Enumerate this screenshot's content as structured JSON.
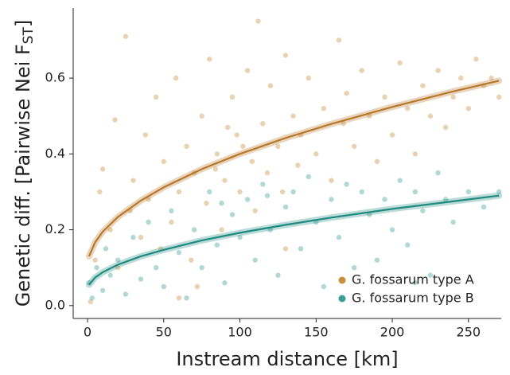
{
  "chart_data": {
    "type": "scatter",
    "x_label": "Instream distance [km]",
    "y_label": {
      "text": "Genetic diff. [Pairwise Nei F",
      "subscript": "ST",
      "suffix": "]"
    },
    "xlim": [
      -9.4,
      271.5
    ],
    "ylim": [
      -0.034,
      0.785
    ],
    "xticks": [
      0,
      50,
      100,
      150,
      200,
      250
    ],
    "yticks": [
      {
        "value": 0,
        "label": "0.0"
      },
      0.2,
      0.4,
      0.6
    ],
    "legend": "bottom-right",
    "series": [
      {
        "name": "G. fossarum type A",
        "color": "#c98f3c",
        "x": [
          2,
          5,
          8,
          10,
          15,
          18,
          20,
          25,
          28,
          30,
          35,
          38,
          40,
          45,
          48,
          50,
          55,
          58,
          60,
          65,
          68,
          70,
          75,
          78,
          80,
          85,
          88,
          90,
          95,
          98,
          100,
          105,
          108,
          110,
          112,
          115,
          118,
          120,
          125,
          128,
          130,
          135,
          138,
          140,
          145,
          150,
          155,
          160,
          165,
          168,
          170,
          175,
          180,
          185,
          190,
          195,
          200,
          205,
          210,
          215,
          220,
          225,
          230,
          235,
          240,
          245,
          250,
          255,
          260,
          265,
          270,
          72,
          60,
          130,
          92,
          102,
          84
        ],
        "values": [
          0.01,
          0.12,
          0.3,
          0.36,
          0.2,
          0.49,
          0.1,
          0.71,
          0.25,
          0.33,
          0.18,
          0.45,
          0.28,
          0.55,
          0.15,
          0.38,
          0.22,
          0.6,
          0.3,
          0.42,
          0.12,
          0.35,
          0.5,
          0.27,
          0.65,
          0.4,
          0.2,
          0.33,
          0.55,
          0.45,
          0.3,
          0.62,
          0.38,
          0.25,
          0.75,
          0.48,
          0.35,
          0.58,
          0.42,
          0.3,
          0.66,
          0.5,
          0.37,
          0.45,
          0.6,
          0.4,
          0.52,
          0.33,
          0.7,
          0.48,
          0.56,
          0.42,
          0.62,
          0.5,
          0.38,
          0.55,
          0.45,
          0.64,
          0.52,
          0.4,
          0.58,
          0.5,
          0.62,
          0.47,
          0.55,
          0.6,
          0.52,
          0.65,
          0.58,
          0.6,
          0.55,
          0.05,
          0.02,
          0.15,
          0.47,
          0.42,
          0.36
        ]
      },
      {
        "name": "G. fossarum type B",
        "color": "#3a9e96",
        "x": [
          1,
          3,
          6,
          10,
          12,
          15,
          20,
          25,
          30,
          35,
          40,
          45,
          50,
          55,
          60,
          65,
          70,
          75,
          80,
          85,
          90,
          95,
          100,
          105,
          110,
          115,
          120,
          125,
          130,
          135,
          140,
          145,
          150,
          155,
          160,
          165,
          170,
          175,
          180,
          185,
          190,
          195,
          200,
          205,
          210,
          215,
          220,
          225,
          230,
          235,
          240,
          250,
          260,
          270,
          88,
          118,
          215
        ],
        "values": [
          0.06,
          0.02,
          0.1,
          0.04,
          0.15,
          0.08,
          0.12,
          0.03,
          0.18,
          0.07,
          0.22,
          0.1,
          0.05,
          0.25,
          0.14,
          0.02,
          0.2,
          0.1,
          0.3,
          0.16,
          0.06,
          0.24,
          0.18,
          0.28,
          0.12,
          0.32,
          0.2,
          0.08,
          0.26,
          0.3,
          0.15,
          0.34,
          0.22,
          0.05,
          0.28,
          0.18,
          0.32,
          0.1,
          0.3,
          0.24,
          0.12,
          0.28,
          0.2,
          0.33,
          0.16,
          0.3,
          0.25,
          0.08,
          0.35,
          0.28,
          0.22,
          0.3,
          0.26,
          0.3,
          0.27,
          0.29,
          0.06
        ]
      }
    ],
    "fits": [
      {
        "color": "#b8782a",
        "x": [
          1,
          5,
          10,
          20,
          35,
          50,
          75,
          100,
          130,
          160,
          200,
          240,
          270
        ],
        "values": [
          0.13,
          0.167,
          0.195,
          0.234,
          0.277,
          0.312,
          0.36,
          0.4,
          0.442,
          0.479,
          0.524,
          0.565,
          0.593
        ]
      },
      {
        "color": "#1f8a80",
        "x": [
          1,
          5,
          10,
          20,
          35,
          50,
          75,
          100,
          130,
          160,
          200,
          240,
          270
        ],
        "values": [
          0.055,
          0.074,
          0.088,
          0.108,
          0.13,
          0.147,
          0.172,
          0.192,
          0.213,
          0.232,
          0.255,
          0.275,
          0.29
        ]
      }
    ]
  }
}
